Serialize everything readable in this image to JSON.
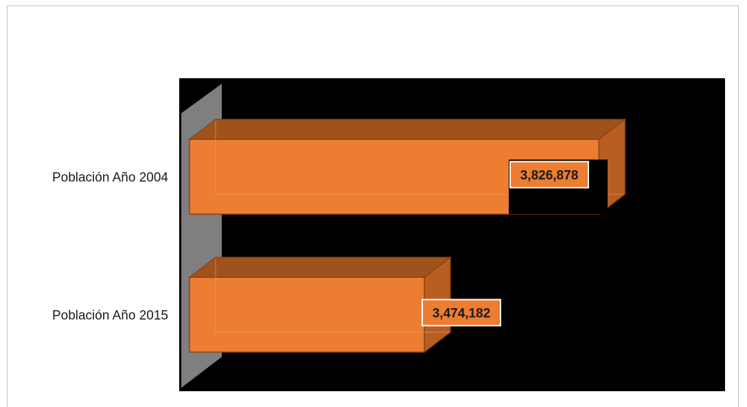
{
  "chart_data": {
    "type": "bar",
    "orientation": "horizontal",
    "categories": [
      "Población Año 2004",
      "Población Año 2015"
    ],
    "values": [
      3826878,
      3474182
    ],
    "data_labels": [
      "3,826,878",
      "3,474,182"
    ],
    "xlim": [
      3000000,
      3900000
    ],
    "grid": false,
    "colors": {
      "bar_front": "#ED7D31",
      "bar_top": "#A0521D",
      "bar_side": "#B85E22",
      "plot_bg": "#000000",
      "wall": "#7F7F7F"
    }
  }
}
